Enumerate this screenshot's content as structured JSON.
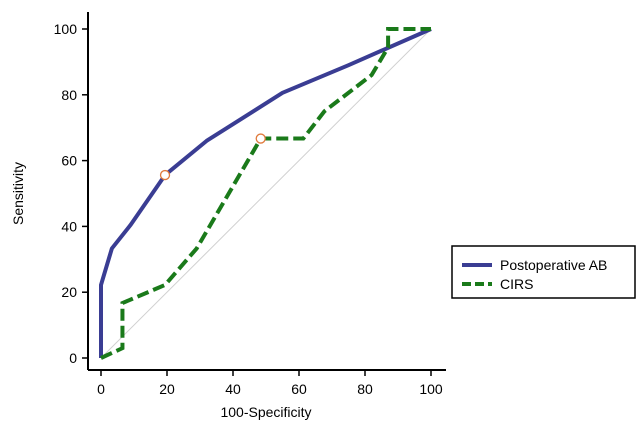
{
  "chart_data": {
    "type": "line",
    "title": "",
    "xlabel": "100-Specificity",
    "ylabel": "Sensitivity",
    "xlim": [
      0,
      100
    ],
    "ylim": [
      0,
      100
    ],
    "xticks": [
      "0",
      "20",
      "40",
      "60",
      "80",
      "100"
    ],
    "yticks": [
      "0",
      "20",
      "40",
      "60",
      "80",
      "100"
    ],
    "grid": false,
    "legend_position": "right",
    "reference_line": {
      "x": [
        0,
        100
      ],
      "y": [
        0,
        100
      ],
      "color": "#d0d0d0"
    },
    "series": [
      {
        "name": "Postoperative AB",
        "color": "#3a3d93",
        "style": "solid",
        "x": [
          0,
          0,
          3.3,
          9,
          19.4,
          32,
          55,
          75,
          100
        ],
        "y": [
          0,
          22.2,
          33.3,
          40.5,
          55.6,
          66,
          80.6,
          89,
          100
        ],
        "marker": {
          "x": 19.4,
          "y": 55.6
        }
      },
      {
        "name": "CIRS",
        "color": "#1a7a1a",
        "style": "dashed",
        "x": [
          0,
          6.5,
          6.5,
          19.4,
          29,
          48.4,
          61.3,
          67.7,
          82,
          87,
          87,
          100
        ],
        "y": [
          0,
          3,
          16.7,
          22.2,
          33.3,
          66.7,
          66.7,
          75,
          86,
          94.4,
          100,
          100
        ],
        "marker": {
          "x": 48.4,
          "y": 66.7
        }
      }
    ]
  }
}
